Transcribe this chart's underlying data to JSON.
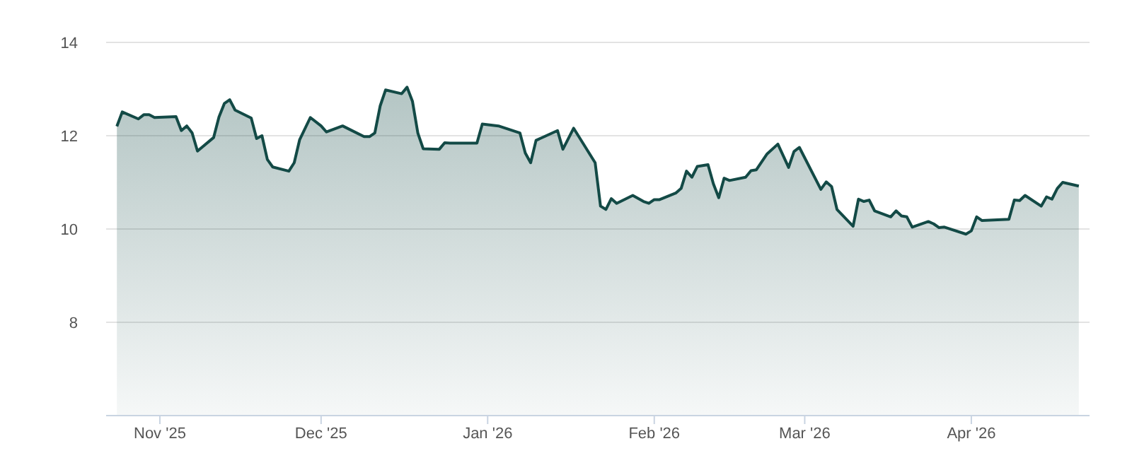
{
  "chart_data": {
    "type": "area",
    "grid": "y",
    "marker": "none",
    "xlim": [
      "2025-10-22",
      "2026-04-23"
    ],
    "xticks": [
      {
        "value": "2025-11-01",
        "label": "Nov '25"
      },
      {
        "value": "2025-12-01",
        "label": "Dec '25"
      },
      {
        "value": "2026-01-01",
        "label": "Jan '26"
      },
      {
        "value": "2026-02-01",
        "label": "Feb '26"
      },
      {
        "value": "2026-03-01",
        "label": "Mar '26"
      },
      {
        "value": "2026-04-01",
        "label": "Apr '26"
      }
    ],
    "ylim": [
      6,
      14
    ],
    "yticks": [
      8,
      10,
      12,
      14
    ],
    "x": [
      "2025-10-24",
      "2025-10-25",
      "2025-10-28",
      "2025-10-29",
      "2025-10-30",
      "2025-10-31",
      "2025-11-04",
      "2025-11-05",
      "2025-11-06",
      "2025-11-07",
      "2025-11-08",
      "2025-11-11",
      "2025-11-12",
      "2025-11-13",
      "2025-11-14",
      "2025-11-15",
      "2025-11-18",
      "2025-11-19",
      "2025-11-20",
      "2025-11-21",
      "2025-11-22",
      "2025-11-25",
      "2025-11-26",
      "2025-11-27",
      "2025-11-29",
      "2025-12-01",
      "2025-12-02",
      "2025-12-05",
      "2025-12-09",
      "2025-12-10",
      "2025-12-11",
      "2025-12-12",
      "2025-12-13",
      "2025-12-16",
      "2025-12-17",
      "2025-12-18",
      "2025-12-19",
      "2025-12-20",
      "2025-12-23",
      "2025-12-24",
      "2025-12-25",
      "2025-12-30",
      "2025-12-31",
      "2026-01-03",
      "2026-01-07",
      "2026-01-08",
      "2026-01-09",
      "2026-01-10",
      "2026-01-14",
      "2026-01-15",
      "2026-01-17",
      "2026-01-21",
      "2026-01-22",
      "2026-01-23",
      "2026-01-24",
      "2026-01-25",
      "2026-01-28",
      "2026-01-30",
      "2026-01-31",
      "2026-02-01",
      "2026-02-02",
      "2026-02-05",
      "2026-02-06",
      "2026-02-07",
      "2026-02-08",
      "2026-02-09",
      "2026-02-11",
      "2026-02-12",
      "2026-02-13",
      "2026-02-14",
      "2026-02-15",
      "2026-02-18",
      "2026-02-19",
      "2026-02-20",
      "2026-02-22",
      "2026-02-24",
      "2026-02-26",
      "2026-02-27",
      "2026-02-28",
      "2026-03-04",
      "2026-03-05",
      "2026-03-06",
      "2026-03-07",
      "2026-03-10",
      "2026-03-11",
      "2026-03-12",
      "2026-03-13",
      "2026-03-14",
      "2026-03-17",
      "2026-03-18",
      "2026-03-19",
      "2026-03-20",
      "2026-03-21",
      "2026-03-24",
      "2026-03-25",
      "2026-03-26",
      "2026-03-27",
      "2026-03-31",
      "2026-04-01",
      "2026-04-02",
      "2026-04-03",
      "2026-04-08",
      "2026-04-09",
      "2026-04-10",
      "2026-04-11",
      "2026-04-14",
      "2026-04-15",
      "2026-04-16",
      "2026-04-17",
      "2026-04-18",
      "2026-04-21"
    ],
    "series": [
      {
        "color": "#134a46",
        "values": [
          12.2,
          12.51,
          12.36,
          12.45,
          12.45,
          12.39,
          12.41,
          12.11,
          12.21,
          12.06,
          11.67,
          11.96,
          12.4,
          12.69,
          12.77,
          12.55,
          12.38,
          11.94,
          12.0,
          11.49,
          11.33,
          11.24,
          11.42,
          11.91,
          12.39,
          12.21,
          12.08,
          12.21,
          11.98,
          11.98,
          12.06,
          12.64,
          12.98,
          12.9,
          13.04,
          12.74,
          12.06,
          11.72,
          11.71,
          11.85,
          11.84,
          11.84,
          12.25,
          12.21,
          12.06,
          11.63,
          11.42,
          11.9,
          12.11,
          11.71,
          12.16,
          11.42,
          10.49,
          10.42,
          10.65,
          10.55,
          10.72,
          10.59,
          10.55,
          10.63,
          10.63,
          10.77,
          10.87,
          11.24,
          11.11,
          11.34,
          11.38,
          10.97,
          10.67,
          11.09,
          11.04,
          11.11,
          11.25,
          11.27,
          11.61,
          11.82,
          11.32,
          11.66,
          11.75,
          10.85,
          11.01,
          10.91,
          10.42,
          10.06,
          10.64,
          10.59,
          10.62,
          10.39,
          10.26,
          10.39,
          10.28,
          10.26,
          10.04,
          10.16,
          10.11,
          10.03,
          10.04,
          9.89,
          9.96,
          10.26,
          10.18,
          10.21,
          10.62,
          10.61,
          10.72,
          10.49,
          10.69,
          10.64,
          10.87,
          11.0,
          10.92
        ]
      }
    ]
  }
}
